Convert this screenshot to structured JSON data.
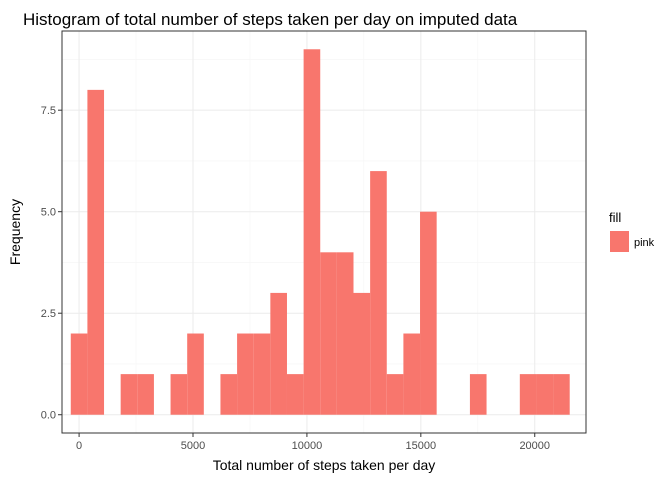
{
  "chart_data": {
    "type": "bar",
    "title": "Histogram of total number of steps taken per day on imputed data",
    "xlabel": "Total number of steps taken per day",
    "ylabel": "Frequency",
    "xlim": [
      -750,
      22250
    ],
    "ylim": [
      -0.45,
      9.45
    ],
    "x_ticks": [
      0,
      5000,
      10000,
      15000,
      20000
    ],
    "x_tick_labels": [
      "0",
      "5000",
      "10000",
      "15000",
      "20000"
    ],
    "y_ticks": [
      0,
      2.5,
      5,
      7.5
    ],
    "y_tick_labels": [
      "0.0",
      "2.5",
      "5.0",
      "7.5"
    ],
    "grid": true,
    "bin_width": 730,
    "bins": [
      {
        "x0": -365,
        "x1": 365,
        "count": 2
      },
      {
        "x0": 365,
        "x1": 1095,
        "count": 8
      },
      {
        "x0": 1825,
        "x1": 2555,
        "count": 1
      },
      {
        "x0": 2555,
        "x1": 3285,
        "count": 1
      },
      {
        "x0": 4015,
        "x1": 4745,
        "count": 1
      },
      {
        "x0": 4745,
        "x1": 5475,
        "count": 2
      },
      {
        "x0": 6205,
        "x1": 6935,
        "count": 1
      },
      {
        "x0": 6935,
        "x1": 7665,
        "count": 2
      },
      {
        "x0": 7665,
        "x1": 8395,
        "count": 2
      },
      {
        "x0": 8395,
        "x1": 9125,
        "count": 3
      },
      {
        "x0": 9125,
        "x1": 9855,
        "count": 1
      },
      {
        "x0": 9855,
        "x1": 10585,
        "count": 9
      },
      {
        "x0": 10585,
        "x1": 11315,
        "count": 4
      },
      {
        "x0": 11315,
        "x1": 12045,
        "count": 4
      },
      {
        "x0": 12045,
        "x1": 12775,
        "count": 3
      },
      {
        "x0": 12775,
        "x1": 13505,
        "count": 6
      },
      {
        "x0": 13505,
        "x1": 14235,
        "count": 1
      },
      {
        "x0": 14235,
        "x1": 14965,
        "count": 2
      },
      {
        "x0": 14965,
        "x1": 15695,
        "count": 5
      },
      {
        "x0": 17155,
        "x1": 17885,
        "count": 1
      },
      {
        "x0": 19345,
        "x1": 20075,
        "count": 1
      },
      {
        "x0": 20075,
        "x1": 20805,
        "count": 1
      },
      {
        "x0": 20805,
        "x1": 21535,
        "count": 1
      }
    ],
    "bar_color": "#F8766D",
    "panel_border_color": "#333333",
    "grid_color": "#EBEBEB",
    "legend": {
      "title": "fill",
      "placement": "right",
      "items": [
        {
          "label": "pink",
          "color": "#F8766D"
        }
      ]
    }
  }
}
